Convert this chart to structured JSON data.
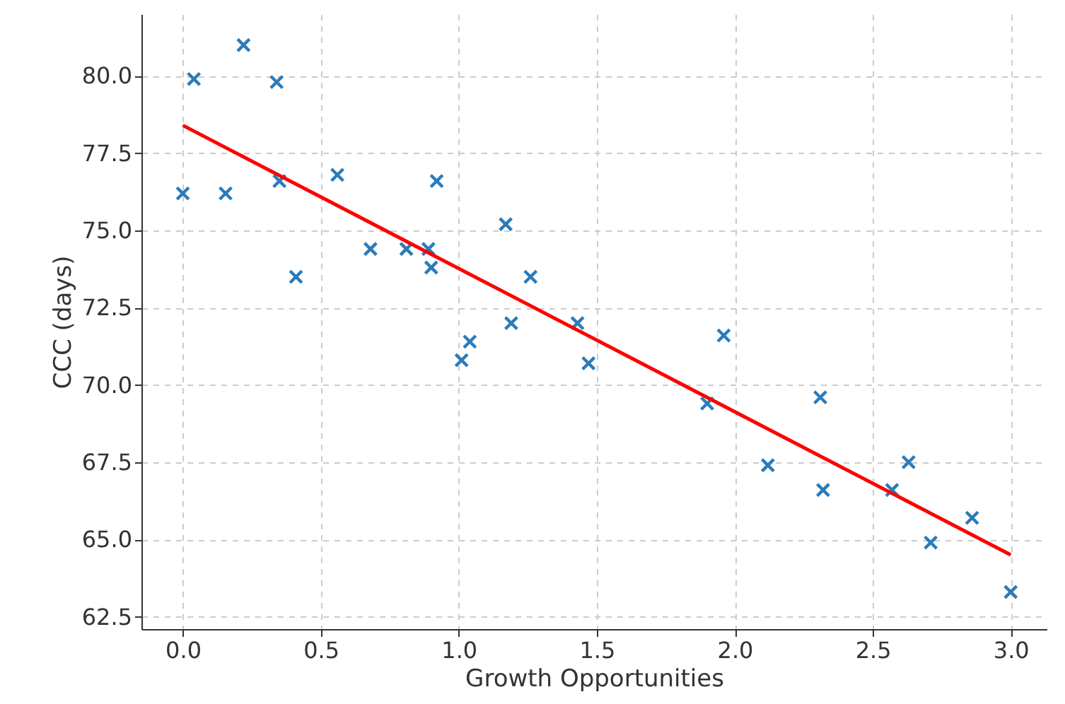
{
  "chart_data": {
    "type": "scatter",
    "xlabel": "Growth Opportunities",
    "ylabel": "CCC (days)",
    "xlim": [
      -0.15,
      3.13
    ],
    "ylim": [
      62.1,
      82.0
    ],
    "xticks": [
      {
        "value": 0,
        "label": "0.0"
      },
      {
        "value": 0.5,
        "label": "0.5"
      },
      {
        "value": 1,
        "label": "1.0"
      },
      {
        "value": 1.5,
        "label": "1.5"
      },
      {
        "value": 2,
        "label": "2.0"
      },
      {
        "value": 2.5,
        "label": "2.5"
      },
      {
        "value": 3,
        "label": "3.0"
      }
    ],
    "yticks": [
      {
        "value": 62.5,
        "label": "62.5"
      },
      {
        "value": 65,
        "label": "65.0"
      },
      {
        "value": 67.5,
        "label": "67.5"
      },
      {
        "value": 70,
        "label": "70.0"
      },
      {
        "value": 72.5,
        "label": "72.5"
      },
      {
        "value": 75,
        "label": "75.0"
      },
      {
        "value": 77.5,
        "label": "77.5"
      },
      {
        "value": 80,
        "label": "80.0"
      }
    ],
    "grid": true,
    "marker": "cross",
    "series": [
      {
        "color": "#2b7bba",
        "x": [
          0.0,
          0.04,
          0.155,
          0.22,
          0.34,
          0.35,
          0.41,
          0.56,
          0.68,
          0.81,
          0.89,
          0.9,
          0.92,
          1.01,
          1.04,
          1.17,
          1.19,
          1.26,
          1.43,
          1.47,
          1.9,
          1.96,
          2.12,
          2.31,
          2.32,
          2.57,
          2.63,
          2.71,
          2.86,
          3.0
        ],
        "values": [
          76.2,
          79.9,
          76.2,
          81.0,
          79.8,
          76.6,
          73.5,
          76.8,
          74.4,
          74.4,
          74.4,
          73.8,
          76.6,
          70.8,
          71.4,
          75.2,
          72.0,
          73.5,
          72.0,
          70.7,
          69.4,
          71.6,
          67.4,
          69.6,
          66.6,
          66.6,
          67.5,
          64.9,
          65.7,
          63.3
        ]
      },
      {
        "type": "line",
        "color": "#ff0000",
        "x": [
          0,
          3
        ],
        "values": [
          78.4,
          64.5
        ],
        "line_style": "solid",
        "marker": "none"
      }
    ]
  }
}
